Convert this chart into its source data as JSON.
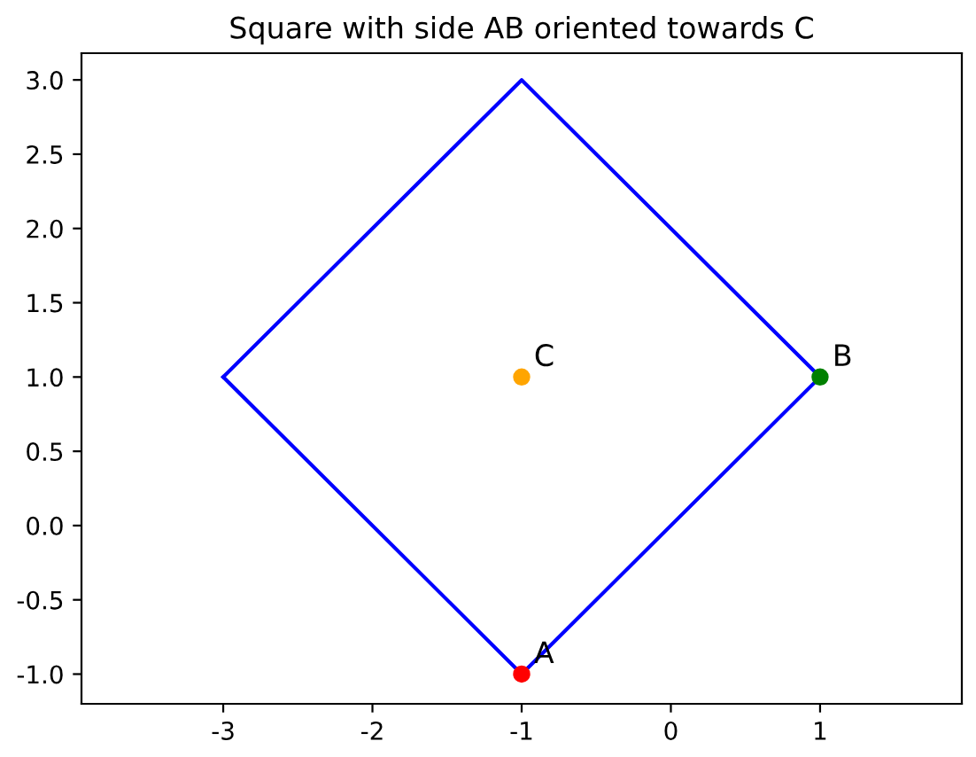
{
  "chart_data": {
    "type": "scatter",
    "title": "Square with side AB oriented towards C",
    "series": [
      {
        "type": "line",
        "color": "#0000ff",
        "x": [
          -3,
          -1,
          1
        ],
        "values": [
          1,
          -1,
          1
        ],
        "marker": "none"
      },
      {
        "type": "line",
        "color": "#0000ff",
        "x": [
          -3,
          -1,
          1
        ],
        "values": [
          1,
          3,
          1
        ],
        "marker": "none"
      },
      {
        "name": "A",
        "color": "#ff0000",
        "x": [
          -1
        ],
        "values": [
          -1
        ],
        "marker": "circle"
      },
      {
        "name": "B",
        "color": "#008000",
        "x": [
          1
        ],
        "values": [
          1
        ],
        "marker": "circle"
      },
      {
        "name": "C",
        "color": "#ffa500",
        "x": [
          -1
        ],
        "values": [
          1
        ],
        "marker": "circle"
      }
    ],
    "xlim": [
      -3.95,
      1.95
    ],
    "ylim": [
      -1.2,
      3.18
    ],
    "xticks": [
      -3,
      -2,
      -1,
      0,
      1
    ],
    "yticks": [
      {
        "value": -1,
        "label": "-1.0"
      },
      -0.5,
      {
        "value": 0,
        "label": "0.0"
      },
      0.5,
      {
        "value": 1,
        "label": "1.0"
      },
      1.5,
      {
        "value": 2,
        "label": "2.0"
      },
      2.5,
      {
        "value": 3,
        "label": "3.0"
      }
    ],
    "grid": false
  }
}
